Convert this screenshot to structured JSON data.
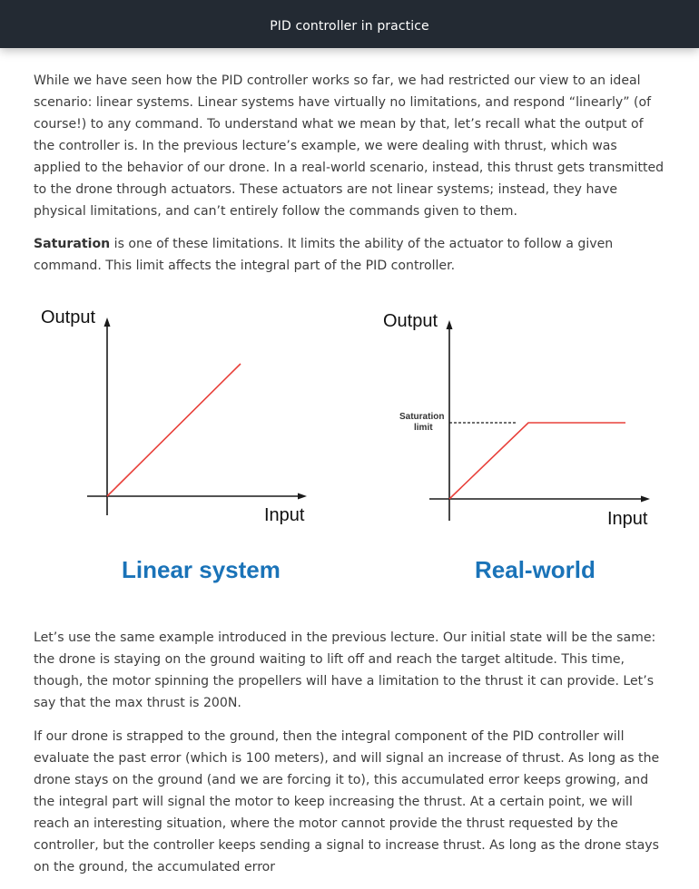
{
  "header": {
    "title": "PID controller in practice"
  },
  "paragraphs": {
    "p1": "While we have seen how the PID controller works so far, we had restricted our view to an ideal scenario: linear systems. Linear systems have virtually no limitations, and respond “linearly” (of course!) to any command. To understand what we mean by that, let’s recall what the output of the controller is. In the previous lecture’s example, we were dealing with thrust, which was applied to the behavior of our drone. In a real-world scenario, instead, this thrust gets transmitted to the drone through actuators. These actuators are not linear systems; instead, they have physical limitations, and can’t entirely follow the commands given to them.",
    "p2_bold": "Saturation",
    "p2_rest": " is one of these limitations. It limits the ability of the actuator to follow a given command. This limit affects the integral part of the PID controller.",
    "p3": "Let’s use the same example introduced in the previous lecture. Our initial state will be the same: the drone is staying on the ground waiting to lift off and reach the target altitude. This time, though, the motor spinning the propellers will have a limitation to the thrust it can provide. Let’s say that the max thrust is 200N.",
    "p4": "If our drone is strapped to the ground, then the integral component of the PID controller will evaluate the past error (which is 100 meters), and will signal an increase of thrust. As long as the drone stays on the ground (and we are forcing it to), this accumulated error keeps growing, and the integral part will signal the motor to keep increasing the thrust. At a certain point, we will reach an interesting situation, where the motor cannot provide the thrust requested by the controller, but the controller keeps sending a signal to increase thrust. As long as the drone stays on the ground, the accumulated error"
  },
  "figure": {
    "left": {
      "ylabel": "Output",
      "xlabel": "Input",
      "caption": "Linear system"
    },
    "right": {
      "ylabel": "Output",
      "xlabel": "Input",
      "caption": "Real-world",
      "saturation_line1": "Saturation",
      "saturation_line2": "limit"
    },
    "colors": {
      "line": "#e8403a",
      "axis": "#1a1a1a",
      "caption": "#1a73b8"
    }
  }
}
